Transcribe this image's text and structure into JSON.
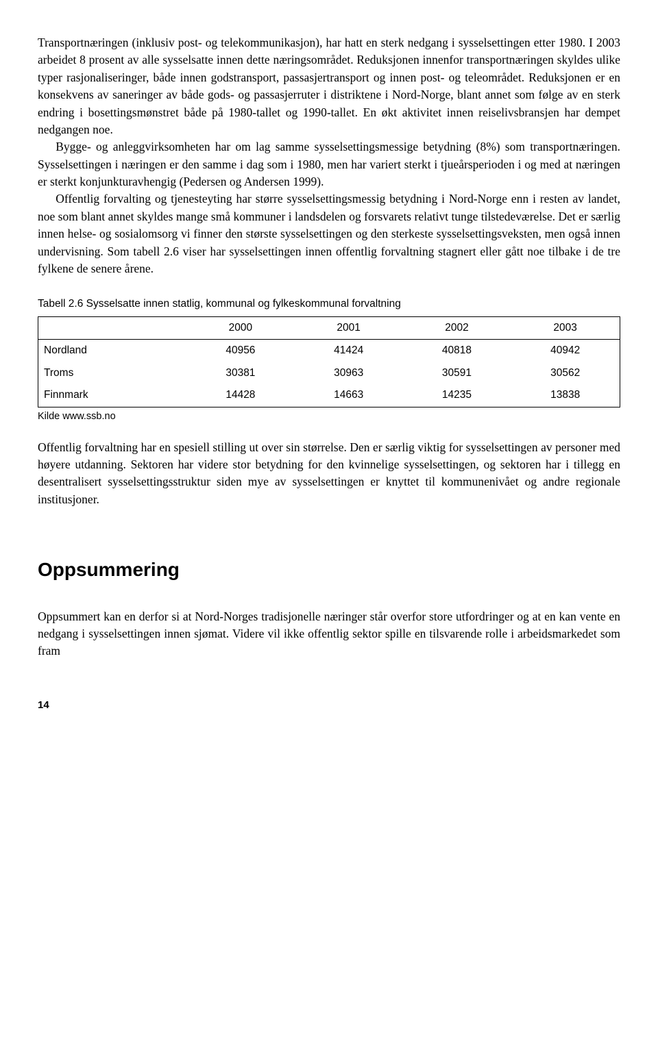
{
  "paragraphs": {
    "p1": "Transportnæringen (inklusiv post- og telekommunikasjon), har hatt en sterk nedgang i sysselsettingen etter 1980. I 2003 arbeidet 8 prosent av alle sysselsatte innen dette næringsområdet. Reduksjonen innenfor transportnæringen skyldes ulike typer rasjonaliseringer, både innen godstransport, passasjertransport og innen post- og teleområdet. Reduksjonen er en konsekvens av saneringer av både gods- og passasjerruter i distriktene i Nord-Norge, blant annet som følge av en sterk endring i bosettingsmønstret både på 1980-tallet og 1990-tallet. En økt aktivitet innen reiselivsbransjen har dempet nedgangen noe.",
    "p2": "Bygge- og anleggvirksomheten har om lag samme sysselsettingsmessige betydning (8%) som transportnæringen. Sysselsettingen i næringen er den samme i dag som i 1980, men har variert sterkt i tjueårsperioden i og med at næringen er sterkt konjunkturavhengig (Pedersen og Andersen 1999).",
    "p3": "Offentlig forvalting og tjenesteyting har større sysselsettingsmessig betydning i Nord-Norge enn i resten av landet, noe som blant annet skyldes mange små kommuner i landsdelen og forsvarets relativt tunge tilstedeværelse. Det er særlig innen helse- og sosialomsorg vi finner den største sysselsettingen og den sterkeste sysselsettingsveksten, men også innen undervisning. Som tabell 2.6 viser har sysselsettingen innen offentlig forvaltning stagnert eller gått noe tilbake i de tre fylkene de senere årene.",
    "p4": "Offentlig forvaltning har en spesiell stilling ut over sin størrelse. Den er særlig viktig for sysselsettingen av personer med høyere utdanning. Sektoren har videre stor betydning for den kvinnelige sysselsettingen, og sektoren har i tillegg en desentralisert sysselsettingsstruktur siden mye av sysselsettingen er knyttet til kommunenivået og andre regionale institusjoner.",
    "p5": "Oppsummert kan en derfor si at Nord-Norges tradisjonelle næringer står overfor store utfordringer og at en kan vente en nedgang i sysselsettingen innen sjømat. Videre vil ikke offentlig sektor spille en tilsvarende rolle i arbeidsmarkedet som fram"
  },
  "table": {
    "caption": "Tabell 2.6 Sysselsatte innen statlig, kommunal og fylkeskommunal forvaltning",
    "columns": [
      "",
      "2000",
      "2001",
      "2002",
      "2003"
    ],
    "rows": [
      [
        "Nordland",
        "40956",
        "41424",
        "40818",
        "40942"
      ],
      [
        "Troms",
        "30381",
        "30963",
        "30591",
        "30562"
      ],
      [
        "Finnmark",
        "14428",
        "14663",
        "14235",
        "13838"
      ]
    ],
    "source": "Kilde www.ssb.no"
  },
  "section_heading": "Oppsummering",
  "page_number": "14"
}
